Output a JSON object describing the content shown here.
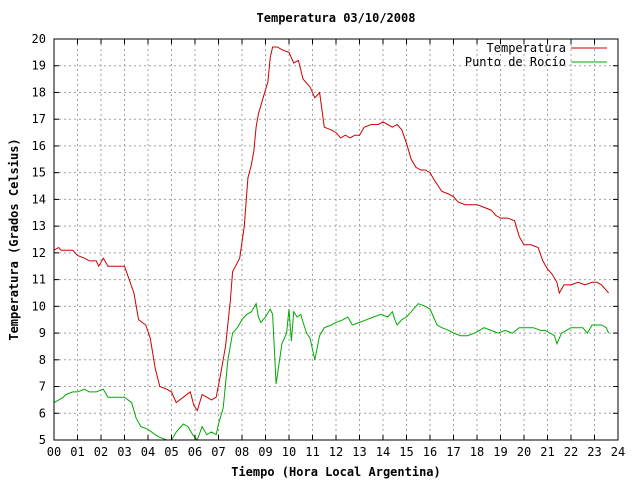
{
  "chart_data": {
    "type": "line",
    "title": "Temperatura 03/10/2008",
    "xlabel": "Tiempo (Hora Local Argentina)",
    "ylabel": "Temperatura (Grados Celsius)",
    "xlim": [
      0,
      24
    ],
    "ylim": [
      5,
      20
    ],
    "x_ticks": [
      "00",
      "01",
      "02",
      "03",
      "04",
      "05",
      "06",
      "07",
      "08",
      "09",
      "10",
      "11",
      "12",
      "13",
      "14",
      "15",
      "16",
      "17",
      "18",
      "19",
      "20",
      "21",
      "22",
      "23",
      "24"
    ],
    "y_ticks": [
      "5",
      "6",
      "7",
      "8",
      "9",
      "10",
      "11",
      "12",
      "13",
      "14",
      "15",
      "16",
      "17",
      "18",
      "19",
      "20"
    ],
    "grid": true,
    "legend_position": "top-right",
    "series": [
      {
        "name": "Temperatura",
        "color": "#cc0000",
        "points": [
          [
            0.0,
            12.1
          ],
          [
            0.2,
            12.2
          ],
          [
            0.3,
            12.1
          ],
          [
            0.5,
            12.1
          ],
          [
            0.8,
            12.1
          ],
          [
            1.0,
            11.9
          ],
          [
            1.3,
            11.8
          ],
          [
            1.5,
            11.7
          ],
          [
            1.8,
            11.7
          ],
          [
            1.9,
            11.5
          ],
          [
            2.1,
            11.8
          ],
          [
            2.3,
            11.5
          ],
          [
            2.6,
            11.5
          ],
          [
            3.0,
            11.5
          ],
          [
            3.2,
            11.0
          ],
          [
            3.4,
            10.5
          ],
          [
            3.6,
            9.5
          ],
          [
            3.9,
            9.3
          ],
          [
            4.1,
            8.8
          ],
          [
            4.3,
            7.7
          ],
          [
            4.5,
            7.0
          ],
          [
            4.8,
            6.9
          ],
          [
            5.0,
            6.8
          ],
          [
            5.2,
            6.4
          ],
          [
            5.5,
            6.6
          ],
          [
            5.8,
            6.8
          ],
          [
            5.95,
            6.3
          ],
          [
            6.1,
            6.1
          ],
          [
            6.3,
            6.7
          ],
          [
            6.5,
            6.6
          ],
          [
            6.7,
            6.5
          ],
          [
            6.9,
            6.6
          ],
          [
            7.1,
            7.5
          ],
          [
            7.3,
            8.5
          ],
          [
            7.5,
            10.2
          ],
          [
            7.6,
            11.3
          ],
          [
            7.9,
            11.8
          ],
          [
            8.1,
            13.0
          ],
          [
            8.25,
            14.8
          ],
          [
            8.4,
            15.3
          ],
          [
            8.5,
            15.8
          ],
          [
            8.6,
            16.7
          ],
          [
            8.7,
            17.2
          ],
          [
            8.8,
            17.5
          ],
          [
            8.9,
            17.8
          ],
          [
            9.0,
            18.1
          ],
          [
            9.1,
            18.4
          ],
          [
            9.2,
            19.3
          ],
          [
            9.3,
            19.7
          ],
          [
            9.5,
            19.7
          ],
          [
            9.7,
            19.6
          ],
          [
            10.0,
            19.5
          ],
          [
            10.2,
            19.1
          ],
          [
            10.4,
            19.2
          ],
          [
            10.6,
            18.5
          ],
          [
            10.9,
            18.2
          ],
          [
            11.1,
            17.8
          ],
          [
            11.3,
            18.0
          ],
          [
            11.5,
            16.7
          ],
          [
            11.8,
            16.6
          ],
          [
            12.0,
            16.5
          ],
          [
            12.2,
            16.3
          ],
          [
            12.4,
            16.4
          ],
          [
            12.6,
            16.3
          ],
          [
            12.8,
            16.4
          ],
          [
            13.0,
            16.4
          ],
          [
            13.2,
            16.7
          ],
          [
            13.5,
            16.8
          ],
          [
            13.8,
            16.8
          ],
          [
            14.0,
            16.9
          ],
          [
            14.2,
            16.8
          ],
          [
            14.4,
            16.7
          ],
          [
            14.6,
            16.8
          ],
          [
            14.8,
            16.6
          ],
          [
            15.0,
            16.1
          ],
          [
            15.2,
            15.5
          ],
          [
            15.4,
            15.2
          ],
          [
            15.6,
            15.1
          ],
          [
            15.8,
            15.1
          ],
          [
            16.0,
            15.0
          ],
          [
            16.2,
            14.7
          ],
          [
            16.5,
            14.3
          ],
          [
            16.8,
            14.2
          ],
          [
            17.0,
            14.1
          ],
          [
            17.2,
            13.9
          ],
          [
            17.5,
            13.8
          ],
          [
            17.8,
            13.8
          ],
          [
            18.0,
            13.8
          ],
          [
            18.3,
            13.7
          ],
          [
            18.6,
            13.6
          ],
          [
            18.8,
            13.4
          ],
          [
            19.0,
            13.3
          ],
          [
            19.3,
            13.3
          ],
          [
            19.6,
            13.2
          ],
          [
            19.8,
            12.6
          ],
          [
            20.0,
            12.3
          ],
          [
            20.3,
            12.3
          ],
          [
            20.6,
            12.2
          ],
          [
            20.8,
            11.7
          ],
          [
            21.0,
            11.4
          ],
          [
            21.2,
            11.2
          ],
          [
            21.4,
            10.9
          ],
          [
            21.5,
            10.5
          ],
          [
            21.7,
            10.8
          ],
          [
            22.0,
            10.8
          ],
          [
            22.3,
            10.9
          ],
          [
            22.6,
            10.8
          ],
          [
            22.9,
            10.9
          ],
          [
            23.1,
            10.9
          ],
          [
            23.3,
            10.8
          ],
          [
            23.5,
            10.6
          ],
          [
            23.6,
            10.5
          ]
        ]
      },
      {
        "name": "Punto de Rocío",
        "color": "#00aa00",
        "points": [
          [
            0.0,
            6.4
          ],
          [
            0.2,
            6.5
          ],
          [
            0.4,
            6.6
          ],
          [
            0.5,
            6.7
          ],
          [
            0.8,
            6.8
          ],
          [
            1.0,
            6.8
          ],
          [
            1.3,
            6.9
          ],
          [
            1.5,
            6.8
          ],
          [
            1.8,
            6.8
          ],
          [
            2.1,
            6.9
          ],
          [
            2.3,
            6.6
          ],
          [
            2.6,
            6.6
          ],
          [
            3.0,
            6.6
          ],
          [
            3.3,
            6.4
          ],
          [
            3.5,
            5.8
          ],
          [
            3.7,
            5.5
          ],
          [
            4.0,
            5.4
          ],
          [
            4.3,
            5.2
          ],
          [
            4.5,
            5.1
          ],
          [
            4.8,
            5.0
          ],
          [
            5.0,
            5.0
          ],
          [
            5.2,
            5.3
          ],
          [
            5.5,
            5.6
          ],
          [
            5.7,
            5.5
          ],
          [
            5.9,
            5.2
          ],
          [
            6.0,
            5.1
          ],
          [
            6.1,
            5.0
          ],
          [
            6.3,
            5.5
          ],
          [
            6.5,
            5.2
          ],
          [
            6.7,
            5.3
          ],
          [
            6.9,
            5.2
          ],
          [
            7.0,
            5.6
          ],
          [
            7.2,
            6.2
          ],
          [
            7.4,
            8.0
          ],
          [
            7.6,
            9.0
          ],
          [
            7.8,
            9.2
          ],
          [
            8.0,
            9.5
          ],
          [
            8.2,
            9.7
          ],
          [
            8.4,
            9.8
          ],
          [
            8.6,
            10.1
          ],
          [
            8.7,
            9.6
          ],
          [
            8.8,
            9.4
          ],
          [
            9.0,
            9.6
          ],
          [
            9.2,
            9.9
          ],
          [
            9.3,
            9.7
          ],
          [
            9.45,
            7.1
          ],
          [
            9.5,
            7.4
          ],
          [
            9.7,
            8.6
          ],
          [
            9.9,
            9.0
          ],
          [
            10.0,
            9.9
          ],
          [
            10.1,
            8.7
          ],
          [
            10.2,
            9.8
          ],
          [
            10.35,
            9.6
          ],
          [
            10.5,
            9.7
          ],
          [
            10.6,
            9.4
          ],
          [
            10.75,
            9.0
          ],
          [
            10.9,
            8.8
          ],
          [
            11.1,
            8.0
          ],
          [
            11.3,
            8.9
          ],
          [
            11.5,
            9.2
          ],
          [
            11.8,
            9.3
          ],
          [
            12.0,
            9.4
          ],
          [
            12.3,
            9.5
          ],
          [
            12.5,
            9.6
          ],
          [
            12.7,
            9.3
          ],
          [
            13.0,
            9.4
          ],
          [
            13.3,
            9.5
          ],
          [
            13.6,
            9.6
          ],
          [
            13.9,
            9.7
          ],
          [
            14.2,
            9.6
          ],
          [
            14.4,
            9.8
          ],
          [
            14.5,
            9.5
          ],
          [
            14.6,
            9.3
          ],
          [
            14.8,
            9.5
          ],
          [
            15.0,
            9.6
          ],
          [
            15.2,
            9.8
          ],
          [
            15.5,
            10.1
          ],
          [
            15.8,
            10.0
          ],
          [
            16.0,
            9.9
          ],
          [
            16.3,
            9.3
          ],
          [
            16.5,
            9.2
          ],
          [
            16.8,
            9.1
          ],
          [
            17.0,
            9.0
          ],
          [
            17.3,
            8.9
          ],
          [
            17.6,
            8.9
          ],
          [
            17.9,
            9.0
          ],
          [
            18.1,
            9.1
          ],
          [
            18.3,
            9.2
          ],
          [
            18.6,
            9.1
          ],
          [
            18.9,
            9.0
          ],
          [
            19.2,
            9.1
          ],
          [
            19.5,
            9.0
          ],
          [
            19.8,
            9.2
          ],
          [
            20.1,
            9.2
          ],
          [
            20.4,
            9.2
          ],
          [
            20.7,
            9.1
          ],
          [
            20.9,
            9.1
          ],
          [
            21.1,
            9.0
          ],
          [
            21.3,
            8.9
          ],
          [
            21.4,
            8.6
          ],
          [
            21.6,
            9.0
          ],
          [
            21.8,
            9.1
          ],
          [
            22.0,
            9.2
          ],
          [
            22.3,
            9.2
          ],
          [
            22.5,
            9.2
          ],
          [
            22.7,
            9.0
          ],
          [
            22.9,
            9.3
          ],
          [
            23.1,
            9.3
          ],
          [
            23.3,
            9.3
          ],
          [
            23.5,
            9.2
          ],
          [
            23.6,
            9.0
          ]
        ]
      }
    ]
  }
}
